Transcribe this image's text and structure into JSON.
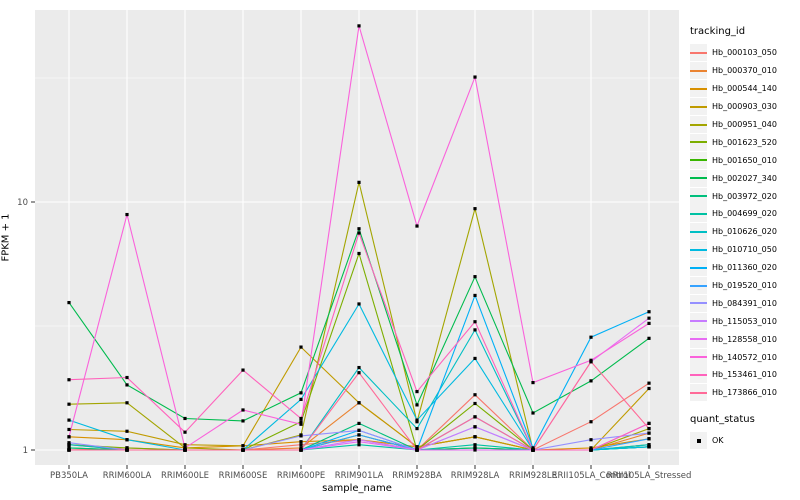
{
  "figure": {
    "background": "#FFFFFF",
    "panel_background": "#EBEBEB",
    "gridline_color": "#FFFFFF",
    "tick_mark_color": "#333333",
    "tick_label_color": "#4D4D4D",
    "point_color": "#000000",
    "legend_key_background": "#F2F2F2"
  },
  "chart_data": {
    "type": "line",
    "title": "",
    "xlabel": "sample_name",
    "ylabel": "FPKM + 1",
    "y_scale": "log10",
    "grid": true,
    "legend_position": "right",
    "y_ticks": [
      "1",
      "10"
    ],
    "y_tick_values": [
      1,
      10
    ],
    "y_minor_values": [
      3.162,
      31.623
    ],
    "ylim": [
      0.95,
      60
    ],
    "categories": [
      "PB350LA",
      "RRIM600LA",
      "RRIM600LE",
      "RRIM600SE",
      "RRIM600PE",
      "RRIM901LA",
      "RRIM928BA",
      "RRIM928LA",
      "RRIM928LE",
      "RRII105LA_Control",
      "RRII105LA_Stressed"
    ],
    "legend_title": "tracking_id",
    "series": [
      {
        "name": "Hb_000103_050",
        "color": "#F8766D",
        "values": [
          1.0,
          1.02,
          1.0,
          1.0,
          1.05,
          1.1,
          1.0,
          1.67,
          1.0,
          1.3,
          1.86
        ]
      },
      {
        "name": "Hb_000370_010",
        "color": "#EA8331",
        "values": [
          1.05,
          1.0,
          1.0,
          1.0,
          1.02,
          1.55,
          1.03,
          1.13,
          1.0,
          1.0,
          1.17
        ]
      },
      {
        "name": "Hb_000544_140",
        "color": "#D89000",
        "values": [
          1.13,
          1.1,
          1.02,
          1.04,
          1.08,
          1.1,
          1.03,
          1.13,
          1.0,
          1.02,
          1.11
        ]
      },
      {
        "name": "Hb_000903_030",
        "color": "#C09B00",
        "values": [
          1.21,
          1.19,
          1.05,
          1.04,
          2.6,
          1.55,
          1.03,
          1.13,
          1.0,
          1.0,
          1.77
        ]
      },
      {
        "name": "Hb_000951_040",
        "color": "#A3A500",
        "values": [
          1.53,
          1.55,
          1.02,
          1.0,
          1.15,
          12.0,
          1.3,
          9.4,
          1.0,
          1.0,
          1.22
        ]
      },
      {
        "name": "Hb_001623_520",
        "color": "#7CAE00",
        "values": [
          1.05,
          1.02,
          1.0,
          1.0,
          1.3,
          6.2,
          1.0,
          1.54,
          1.0,
          1.0,
          1.05
        ]
      },
      {
        "name": "Hb_001650_010",
        "color": "#39B600",
        "values": [
          1.02,
          1.0,
          1.0,
          1.0,
          1.0,
          1.15,
          1.0,
          1.02,
          1.0,
          1.0,
          1.03
        ]
      },
      {
        "name": "Hb_002027_340",
        "color": "#00BB4E",
        "values": [
          3.93,
          1.83,
          1.34,
          1.31,
          1.7,
          7.8,
          1.52,
          5.0,
          1.41,
          1.9,
          2.82
        ]
      },
      {
        "name": "Hb_003972_020",
        "color": "#00BF7D",
        "values": [
          1.02,
          1.0,
          1.0,
          1.0,
          1.0,
          1.28,
          1.0,
          1.02,
          1.0,
          1.0,
          1.03
        ]
      },
      {
        "name": "Hb_004699_020",
        "color": "#00C1A3",
        "values": [
          1.0,
          1.0,
          1.0,
          1.0,
          1.0,
          1.05,
          1.0,
          1.05,
          1.0,
          1.0,
          1.03
        ]
      },
      {
        "name": "Hb_010626_020",
        "color": "#00BFC4",
        "values": [
          1.05,
          1.0,
          1.0,
          1.0,
          1.0,
          2.15,
          1.22,
          3.05,
          1.0,
          1.0,
          1.05
        ]
      },
      {
        "name": "Hb_010710_050",
        "color": "#00BAE0",
        "values": [
          1.32,
          1.1,
          1.0,
          1.0,
          1.6,
          3.88,
          1.32,
          2.34,
          1.0,
          1.0,
          1.03
        ]
      },
      {
        "name": "Hb_011360_020",
        "color": "#00B0F6",
        "values": [
          1.0,
          1.0,
          1.0,
          1.0,
          1.0,
          1.2,
          1.0,
          4.2,
          1.02,
          2.85,
          3.61
        ]
      },
      {
        "name": "Hb_019520_010",
        "color": "#35A2FF",
        "values": [
          1.0,
          1.0,
          1.0,
          1.0,
          1.0,
          1.15,
          1.0,
          1.36,
          1.0,
          1.0,
          1.11
        ]
      },
      {
        "name": "Hb_084391_010",
        "color": "#9590FF",
        "values": [
          1.07,
          1.0,
          1.0,
          1.0,
          1.14,
          1.2,
          1.0,
          1.24,
          1.0,
          1.1,
          1.17
        ]
      },
      {
        "name": "Hb_115053_010",
        "color": "#C77CFF",
        "values": [
          1.0,
          1.0,
          1.0,
          1.0,
          1.0,
          1.1,
          1.0,
          1.24,
          1.0,
          1.0,
          1.28
        ]
      },
      {
        "name": "Hb_128558_010",
        "color": "#E76BF3",
        "values": [
          1.0,
          1.0,
          1.0,
          1.0,
          1.0,
          1.08,
          1.0,
          1.0,
          1.0,
          2.27,
          3.4
        ]
      },
      {
        "name": "Hb_140572_010",
        "color": "#FA62DB",
        "values": [
          1.13,
          8.9,
          1.02,
          1.45,
          1.27,
          51.3,
          8.0,
          31.9,
          1.87,
          2.3,
          3.24
        ]
      },
      {
        "name": "Hb_153461_010",
        "color": "#FF62BC",
        "values": [
          1.92,
          1.96,
          1.18,
          2.1,
          1.34,
          7.5,
          1.72,
          3.29,
          1.0,
          1.0,
          1.28
        ]
      },
      {
        "name": "Hb_173866_010",
        "color": "#FF6A98",
        "values": [
          1.0,
          1.0,
          1.0,
          1.0,
          1.0,
          2.05,
          1.0,
          1.36,
          1.0,
          2.27,
          1.22
        ]
      }
    ],
    "legend2_title": "quant_status",
    "legend2_items": [
      {
        "label": "OK",
        "symbol": "black-square"
      }
    ]
  }
}
